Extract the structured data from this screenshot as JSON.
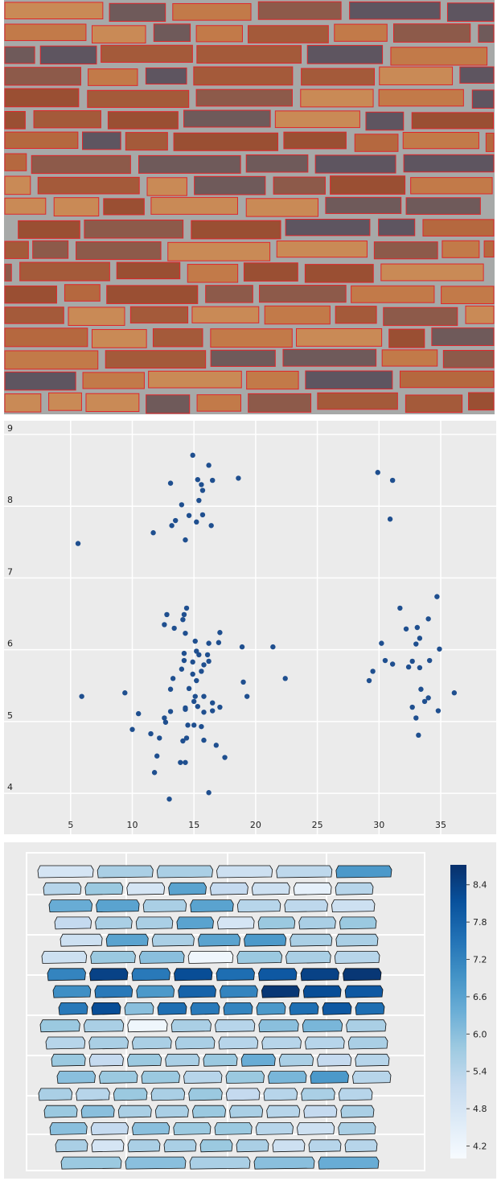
{
  "chart_data": [
    {
      "type": "scatter",
      "color": "#1f4f8f",
      "grid": true,
      "xlim": [
        -0.4,
        39.5
      ],
      "ylim": [
        3.43,
        9.19
      ],
      "xticks": [
        5,
        10,
        15,
        20,
        25,
        30,
        35
      ],
      "yticks": [
        4,
        5,
        6,
        7,
        8,
        9
      ],
      "x": [
        14.9,
        16.2,
        13.1,
        15.3,
        15.6,
        16.5,
        18.6,
        15.7,
        14.0,
        15.4,
        14.6,
        13.5,
        13.2,
        15.7,
        15.2,
        16.4,
        11.7,
        14.3,
        5.6,
        29.9,
        31.1,
        30.9,
        14.4,
        12.8,
        14.2,
        14.1,
        12.6,
        13.4,
        17.1,
        14.3,
        16.2,
        15.1,
        17.0,
        18.9,
        21.4,
        15.2,
        14.2,
        15.4,
        16.1,
        14.2,
        14.9,
        16.2,
        15.8,
        14.0,
        15.6,
        13.3,
        14.9,
        15.2,
        19.0,
        22.4,
        9.4,
        5.9,
        13.1,
        14.6,
        15.1,
        15.8,
        19.3,
        16.5,
        15.0,
        14.3,
        17.1,
        13.1,
        15.8,
        16.5,
        15.3,
        14.3,
        10.5,
        12.6,
        12.7,
        14.5,
        15.0,
        15.6,
        10.0,
        11.5,
        12.2,
        14.4,
        14.1,
        15.8,
        16.8,
        17.5,
        12.0,
        13.9,
        14.3,
        11.8,
        16.2,
        13.0,
        34.7,
        31.7,
        34.0,
        32.2,
        33.1,
        33.3,
        30.2,
        33.0,
        34.9,
        30.5,
        31.1,
        32.7,
        34.1,
        32.4,
        33.3,
        29.5,
        29.2,
        33.4,
        36.1,
        34.0,
        33.7,
        32.7,
        34.8,
        33.0,
        33.2
      ],
      "values": [
        8.71,
        8.57,
        8.32,
        8.37,
        8.3,
        8.36,
        8.39,
        8.22,
        8.02,
        8.08,
        7.87,
        7.8,
        7.73,
        7.88,
        7.78,
        7.73,
        7.63,
        7.53,
        7.48,
        8.47,
        8.36,
        7.82,
        6.58,
        6.49,
        6.49,
        6.42,
        6.35,
        6.3,
        6.24,
        6.23,
        6.09,
        6.12,
        6.1,
        6.04,
        6.04,
        5.98,
        5.95,
        5.93,
        5.93,
        5.85,
        5.83,
        5.84,
        5.79,
        5.73,
        5.7,
        5.6,
        5.66,
        5.57,
        5.55,
        5.6,
        5.4,
        5.35,
        5.45,
        5.46,
        5.35,
        5.35,
        5.35,
        5.26,
        5.28,
        5.19,
        5.2,
        5.14,
        5.13,
        5.15,
        5.21,
        5.17,
        5.11,
        5.05,
        4.99,
        4.95,
        4.95,
        4.93,
        4.89,
        4.83,
        4.77,
        4.77,
        4.73,
        4.74,
        4.67,
        4.5,
        4.52,
        4.43,
        4.43,
        4.29,
        4.01,
        3.92,
        6.74,
        6.58,
        6.43,
        6.29,
        6.31,
        6.16,
        6.09,
        6.08,
        6.01,
        5.85,
        5.8,
        5.84,
        5.85,
        5.76,
        5.75,
        5.7,
        5.57,
        5.45,
        5.4,
        5.33,
        5.28,
        5.2,
        5.15,
        5.05,
        4.81
      ]
    },
    {
      "type": "choropleth",
      "colormap": "Blues",
      "clim": [
        4.0,
        8.72
      ],
      "cticks": [
        4.2,
        4.8,
        5.4,
        {
          "value": 6,
          "label": "6.0"
        },
        6.6,
        7.2,
        7.8,
        8.4
      ],
      "rows": [
        [
          4.8,
          5.6,
          5.6,
          5.0,
          5.3,
          6.8
        ],
        [
          5.4,
          5.8,
          4.8,
          6.6,
          5.2,
          5.0,
          4.4,
          5.4
        ],
        [
          6.4,
          6.6,
          5.6,
          6.6,
          5.4,
          5.3,
          5.0
        ],
        [
          5.2,
          5.6,
          5.6,
          6.6,
          4.8,
          5.8,
          5.6,
          5.8
        ],
        [
          5.0,
          6.6,
          5.6,
          6.6,
          6.8,
          5.6,
          5.6
        ],
        [
          5.0,
          5.8,
          6.0,
          4.2,
          5.8,
          5.6,
          5.4
        ],
        [
          7.2,
          8.4,
          7.4,
          8.2,
          7.6,
          8.0,
          8.4,
          8.6
        ],
        [
          7.0,
          7.4,
          6.8,
          7.8,
          7.2,
          8.6,
          8.2,
          8.0
        ],
        [
          7.4,
          8.2,
          6.0,
          7.6,
          7.4,
          7.2,
          6.8,
          7.6,
          8.0,
          7.6
        ],
        [
          5.8,
          5.6,
          4.2,
          5.6,
          5.4,
          6.0,
          6.2,
          5.6
        ],
        [
          5.4,
          5.6,
          5.6,
          5.6,
          5.4,
          5.4,
          5.4,
          5.6
        ],
        [
          5.8,
          5.2,
          5.8,
          5.6,
          5.8,
          6.4,
          5.6,
          5.2,
          5.4
        ],
        [
          6.0,
          5.8,
          5.8,
          5.4,
          5.8,
          6.2,
          6.8,
          5.4
        ],
        [
          5.6,
          5.4,
          5.8,
          5.6,
          5.8,
          5.2,
          5.4,
          5.6,
          5.4
        ],
        [
          5.8,
          6.0,
          5.6,
          5.6,
          5.8,
          5.6,
          5.4,
          5.2,
          5.6
        ],
        [
          6.0,
          5.2,
          6.0,
          5.8,
          5.8,
          5.4,
          5.0,
          5.6
        ],
        [
          5.6,
          4.8,
          5.6,
          5.6,
          5.8,
          5.6,
          5.0,
          5.4,
          5.4
        ],
        [
          5.8,
          6.0,
          5.6,
          6.0,
          6.4
        ]
      ]
    }
  ]
}
